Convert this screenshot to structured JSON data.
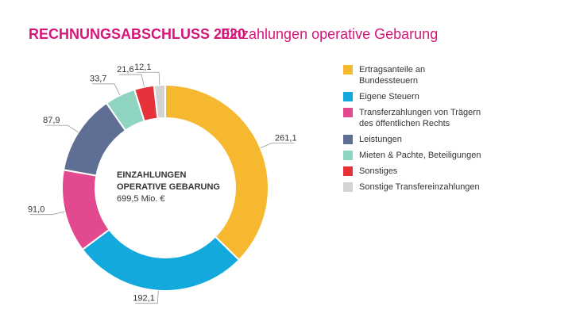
{
  "chart_data": {
    "type": "pie",
    "donut": true,
    "title": "RECHNUNGSABSCHLUSS 2020",
    "subtitle": "Einzahlungen operative Gebarung",
    "center_label": [
      "EINZAHLUNGEN",
      "OPERATIVE GEBARUNG",
      "699,5 Mio. €"
    ],
    "categories": [
      "Ertragsanteile an Bundessteuern",
      "Eigene Steuern",
      "Transferzahlungen von Trägern des öffentlichen Rechts",
      "Leistungen",
      "Mieten & Pachte, Beteiligungen",
      "Sonstiges",
      "Sonstige Transfereinzahlungen"
    ],
    "values": [
      261.1,
      192.1,
      91.0,
      87.9,
      33.7,
      21.6,
      12.1
    ],
    "value_labels": [
      "261,1",
      "192,1",
      "91,0",
      "87,9",
      "33,7",
      "21,6",
      "12,1"
    ],
    "colors": [
      "#f5b82e",
      "#14a9dc",
      "#e2498f",
      "#5f6f94",
      "#8fd3c1",
      "#e5323b",
      "#d3d3d3"
    ],
    "legend": "right"
  }
}
